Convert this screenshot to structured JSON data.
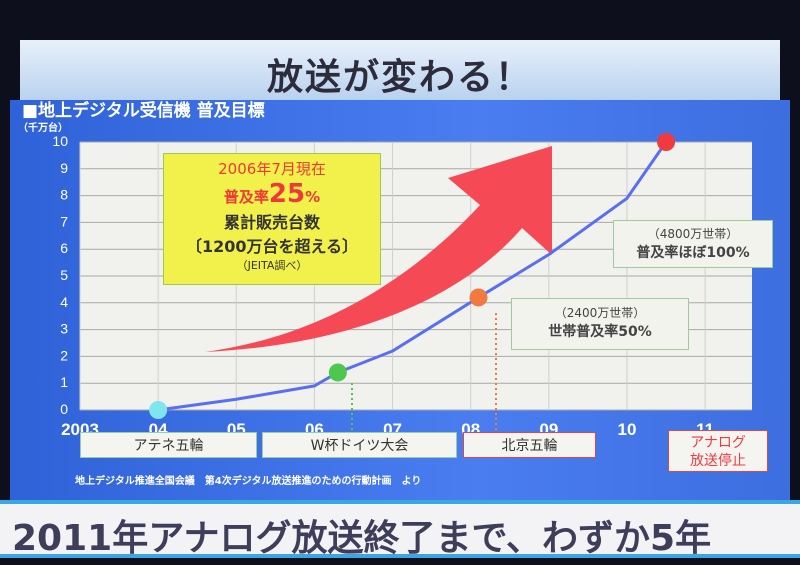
{
  "slide": {
    "title": "放送が変わる！",
    "subtitle": "■地上デジタル受信機 普及目標",
    "unit": "（千万台）",
    "source": "地上デジタル推進全国会議　第4次デジタル放送推進のための行動計画　より",
    "banner": "2011年アナログ放送終了まで、わずか5年"
  },
  "yellow_box": {
    "line1": "2006年7月現在",
    "line2a": "普及率",
    "line2b": "25",
    "line2c": "%",
    "line3": "累計販売台数",
    "line4": "〔1200万台を超える〕",
    "line5": "（JEITA調べ）"
  },
  "callouts": {
    "c50_top": "（2400万世帯）",
    "c50_bottom": "世帯普及率50%",
    "c100_top": "（4800万世帯）",
    "c100_bottom": "普及率ほぼ100%"
  },
  "events": {
    "athens": "アテネ五輪",
    "worldcup": "W杯ドイツ大会",
    "beijing": "北京五輪",
    "analog_stop_1": "アナログ",
    "analog_stop_2": "放送停止"
  },
  "colors": {
    "line": "#5a6ef0",
    "arrow": "#f54a55",
    "dot_2004": "#7fe6f0",
    "dot_2006": "#4cc84c",
    "dot_2008": "#f07a40",
    "dot_2011": "#f03a40",
    "background": "#3d6ee0"
  },
  "chart_data": {
    "type": "line",
    "ylabel": "（千万台）",
    "ylim": [
      0,
      10
    ],
    "yticks": [
      "0",
      "1",
      "2",
      "3",
      "4",
      "5",
      "6",
      "7",
      "8",
      "9",
      "10"
    ],
    "xlim": [
      2003,
      2011.6
    ],
    "xticks": [
      {
        "v": 2003,
        "label": "2003"
      },
      {
        "v": 2004,
        "label": "04"
      },
      {
        "v": 2005,
        "label": "05"
      },
      {
        "v": 2006,
        "label": "06"
      },
      {
        "v": 2007,
        "label": "07"
      },
      {
        "v": 2008,
        "label": "08"
      },
      {
        "v": 2009,
        "label": "09"
      },
      {
        "v": 2010,
        "label": "10"
      },
      {
        "v": 2011,
        "label": "11"
      }
    ],
    "grid": true,
    "series": [
      {
        "x": [
          2004,
          2005,
          2006,
          2006.3,
          2007,
          2008.1,
          2009,
          2010,
          2010.5
        ],
        "y": [
          0,
          0.4,
          0.9,
          1.4,
          2.2,
          4.2,
          5.8,
          7.9,
          10
        ]
      }
    ],
    "markers": [
      {
        "x": 2004,
        "y": 0,
        "color": "#7fe6f0"
      },
      {
        "x": 2006.3,
        "y": 1.4,
        "color": "#4cc84c"
      },
      {
        "x": 2008.1,
        "y": 4.2,
        "color": "#f07a40"
      },
      {
        "x": 2010.5,
        "y": 10,
        "color": "#f03a40"
      }
    ]
  }
}
